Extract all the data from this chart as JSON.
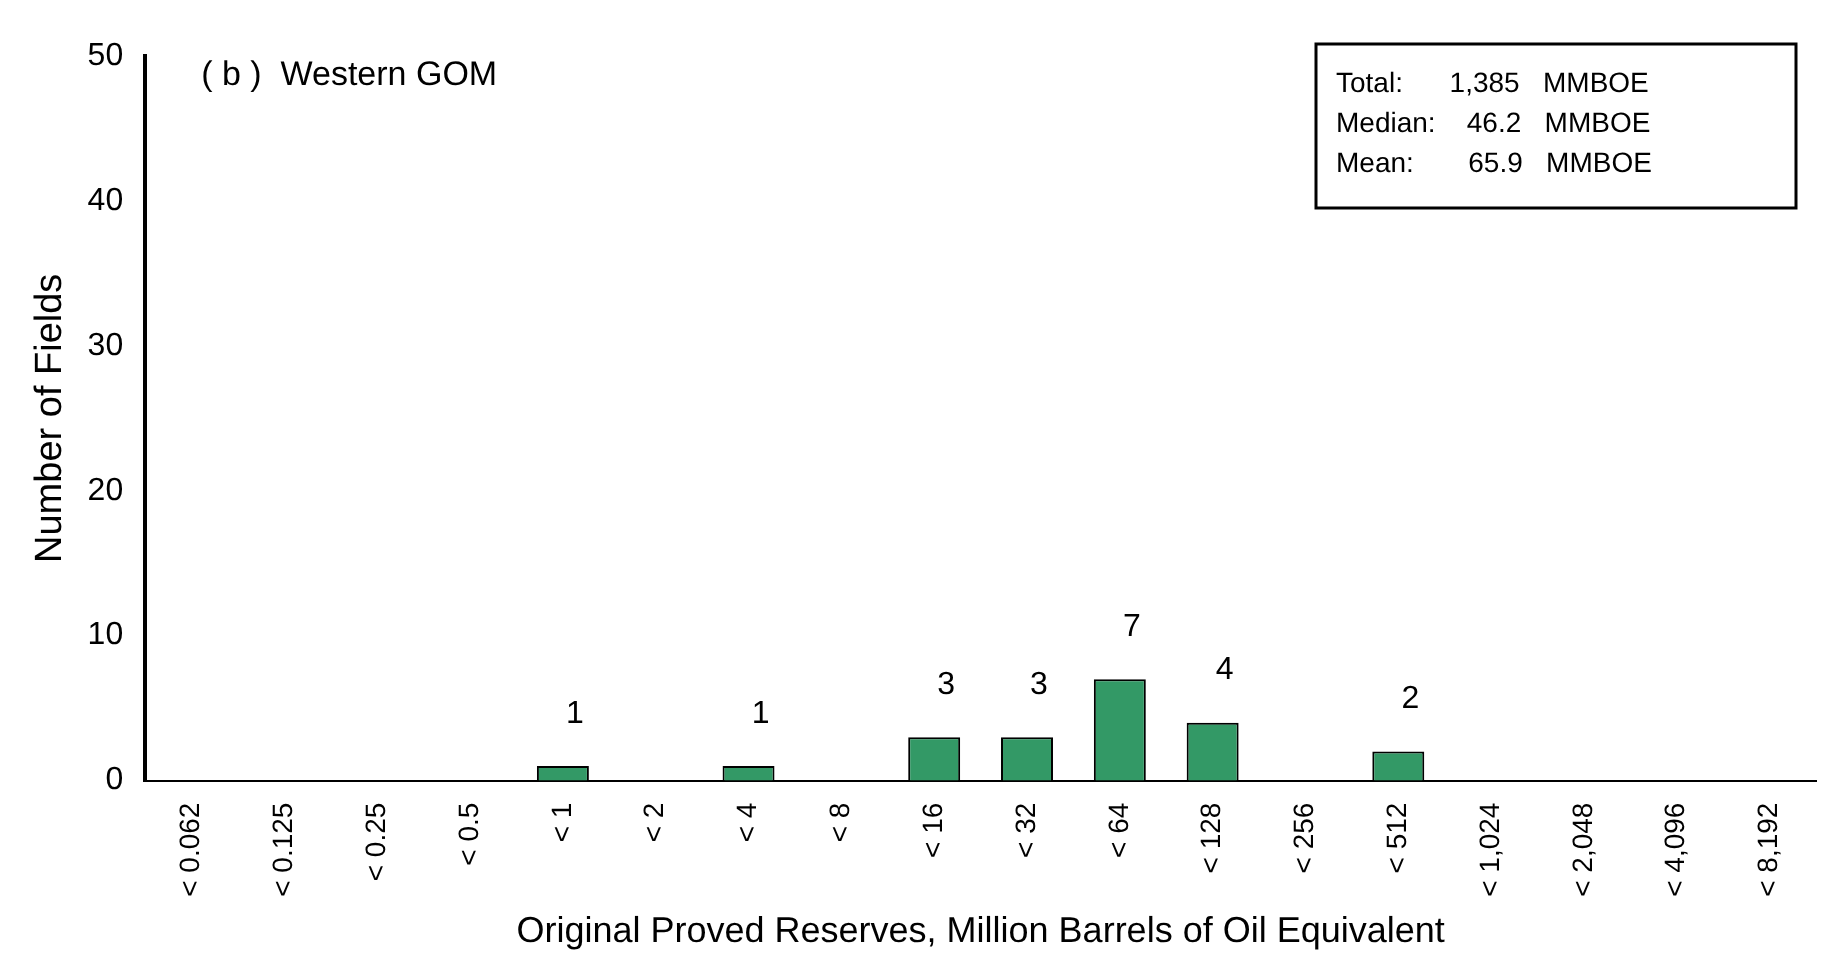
{
  "chart_data": {
    "type": "bar",
    "xlabel": "Original Proved Reserves, Million Barrels of Oil Equivalent",
    "ylabel": "Number of Fields",
    "categories": [
      "< 0.062",
      "< 0.125",
      "< 0.25",
      "< 0.5",
      "< 1",
      "< 2",
      "< 4",
      "< 8",
      "< 16",
      "< 32",
      "< 64",
      "< 128",
      "< 256",
      "< 512",
      "< 1,024",
      "< 2,048",
      "< 4,096",
      "< 8,192"
    ],
    "values": [
      0,
      0,
      0,
      0,
      1,
      0,
      1,
      0,
      3,
      3,
      7,
      4,
      0,
      2,
      0,
      0,
      0,
      0
    ],
    "value_labels": [
      null,
      null,
      null,
      null,
      "1",
      null,
      "1",
      null,
      "3",
      "3",
      "7",
      "4",
      null,
      "2",
      null,
      null,
      null,
      null
    ],
    "color": "#339966",
    "ylim": [
      0,
      50
    ],
    "yticks": [
      0,
      10,
      20,
      30,
      40,
      50
    ],
    "grid": false,
    "legend": false,
    "annotations": [
      "( b )  Western GOM",
      "Total:      1,385   MMBOE",
      "Median:    46.2   MMBOE",
      "Mean:       65.9   MMBOE"
    ]
  }
}
